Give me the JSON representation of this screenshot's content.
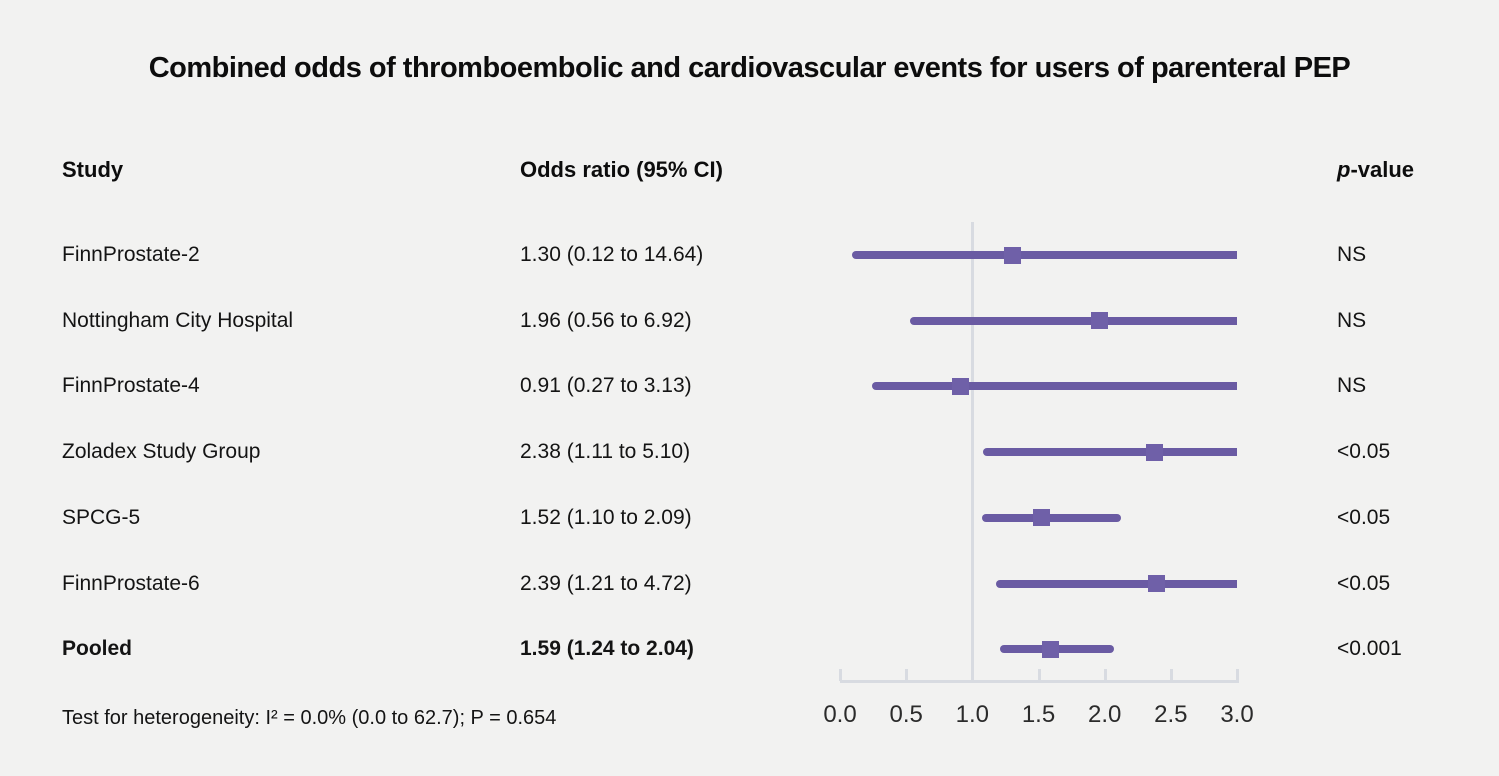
{
  "page": {
    "background": "#f2f2f1"
  },
  "title": "Combined odds of thromboembolic and cardiovascular events for users of parenteral PEP",
  "columns": {
    "study": "Study",
    "odds_ratio": "Odds ratio (95% CI)",
    "p_value_italic": "p",
    "p_value_rest": "-value"
  },
  "footer": "Test for heterogeneity: I² = 0.0% (0.0 to 62.7); P = 0.654",
  "colors": {
    "ci_line": "#6a5ba3",
    "marker": "#6f60a8",
    "reference_line": "#d8dbe1",
    "axis": "#d8dbe1",
    "text": "#141414"
  },
  "chart_data": {
    "type": "forest",
    "title": "Combined odds of thromboembolic and cardiovascular events for users of parenteral PEP",
    "xlabel": "",
    "x_axis": {
      "min": 0.0,
      "max": 3.0,
      "tick_values": [
        0.0,
        0.5,
        1.0,
        1.5,
        2.0,
        2.5,
        3.0
      ],
      "tick_labels": [
        "0.0",
        "0.5",
        "1.0",
        "1.5",
        "2.0",
        "2.5",
        "3.0"
      ],
      "reference_line": 1.0
    },
    "rows": [
      {
        "study": "FinnProstate-2",
        "or_label": "1.30 (0.12 to 14.64)",
        "estimate": 1.3,
        "ci_low": 0.12,
        "ci_high": 14.64,
        "p_value": "NS",
        "bold": false
      },
      {
        "study": "Nottingham City Hospital",
        "or_label": "1.96 (0.56 to 6.92)",
        "estimate": 1.96,
        "ci_low": 0.56,
        "ci_high": 6.92,
        "p_value": "NS",
        "bold": false
      },
      {
        "study": "FinnProstate-4",
        "or_label": "0.91 (0.27 to 3.13)",
        "estimate": 0.91,
        "ci_low": 0.27,
        "ci_high": 3.13,
        "p_value": "NS",
        "bold": false
      },
      {
        "study": "Zoladex Study Group",
        "or_label": "2.38 (1.11 to 5.10)",
        "estimate": 2.38,
        "ci_low": 1.11,
        "ci_high": 5.1,
        "p_value": "<0.05",
        "bold": false
      },
      {
        "study": "SPCG-5",
        "or_label": "1.52 (1.10 to 2.09)",
        "estimate": 1.52,
        "ci_low": 1.1,
        "ci_high": 2.09,
        "p_value": "<0.05",
        "bold": false
      },
      {
        "study": "FinnProstate-6",
        "or_label": "2.39 (1.21 to 4.72)",
        "estimate": 2.39,
        "ci_low": 1.21,
        "ci_high": 4.72,
        "p_value": "<0.05",
        "bold": false
      },
      {
        "study": "Pooled",
        "or_label": "1.59 (1.24 to 2.04)",
        "estimate": 1.59,
        "ci_low": 1.24,
        "ci_high": 2.04,
        "p_value": "<0.001",
        "bold": true
      }
    ]
  }
}
